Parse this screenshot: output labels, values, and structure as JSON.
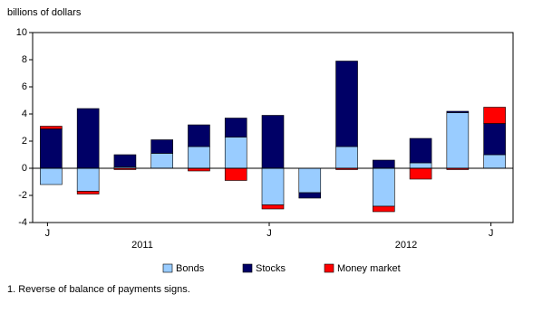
{
  "chart_data": {
    "type": "stacked_bar",
    "y_axis_label": "billions of dollars",
    "categories": [
      "J",
      null,
      null,
      null,
      null,
      null,
      "J",
      null,
      null,
      null,
      null,
      null,
      "J"
    ],
    "year_labels": [
      "2011",
      "2012"
    ],
    "series": [
      {
        "name": "Bonds",
        "color": "#99ccff",
        "values": [
          -1.2,
          -1.7,
          0.1,
          1.1,
          1.6,
          2.3,
          -2.7,
          -1.8,
          1.6,
          -2.8,
          0.4,
          4.1,
          1.0
        ]
      },
      {
        "name": "Stocks",
        "color": "#000066",
        "values": [
          2.9,
          4.4,
          0.9,
          1.0,
          1.6,
          1.4,
          3.9,
          -0.4,
          6.3,
          0.6,
          1.8,
          0.1,
          2.3
        ]
      },
      {
        "name": "Money market",
        "color": "#ff0000",
        "values": [
          0.2,
          -0.2,
          -0.1,
          0,
          -0.2,
          -0.9,
          -0.3,
          0,
          -0.1,
          -0.4,
          -0.8,
          -0.1,
          1.2
        ]
      }
    ],
    "ylim": [
      -4,
      10
    ],
    "yticks": [
      -4,
      -2,
      0,
      2,
      4,
      6,
      8,
      10
    ],
    "footnote": "1. Reverse of balance of payments signs."
  }
}
